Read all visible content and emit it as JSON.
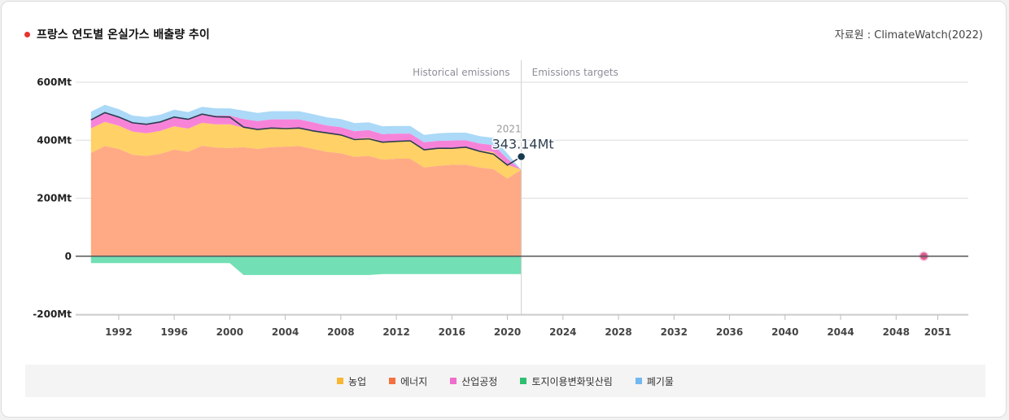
{
  "header": {
    "title": "프랑스 연도별 온실가스 배출량 추이",
    "source": "자료원 : ClimateWatch(2022)"
  },
  "chart_data": {
    "type": "area",
    "y_axis": {
      "ticks": [
        600,
        400,
        200,
        0,
        -200
      ],
      "tick_labels": [
        "600Mt",
        "400Mt",
        "200Mt",
        "0",
        "-200Mt"
      ],
      "ylim": [
        -200,
        600
      ]
    },
    "x_axis": {
      "xlim": [
        1988.9,
        2053.2
      ],
      "ticks": [
        1992,
        1996,
        2000,
        2004,
        2008,
        2012,
        2016,
        2020,
        2024,
        2028,
        2032,
        2036,
        2040,
        2044,
        2048,
        2051
      ],
      "tick_labels": [
        "1992",
        "1996",
        "2000",
        "2004",
        "2008",
        "2012",
        "2016",
        "2020",
        "2024",
        "2028",
        "2032",
        "2036",
        "2040",
        "2044",
        "2048",
        "2051"
      ]
    },
    "region_labels": {
      "left": "Historical emissions",
      "right": "Emissions targets",
      "divider_year": 2021
    },
    "x": [
      1990,
      1991,
      1992,
      1993,
      1994,
      1995,
      1996,
      1997,
      1998,
      1999,
      2000,
      2001,
      2002,
      2003,
      2004,
      2005,
      2006,
      2007,
      2008,
      2009,
      2010,
      2011,
      2012,
      2013,
      2014,
      2015,
      2016,
      2017,
      2018,
      2019,
      2020,
      2021
    ],
    "series": [
      {
        "name": "에너지",
        "color": "#ffaa85",
        "values": [
          356,
          380,
          370,
          350,
          346,
          353,
          368,
          360,
          381,
          375,
          373,
          376,
          370,
          376,
          378,
          380,
          370,
          360,
          355,
          343,
          346,
          333,
          336,
          336,
          306,
          312,
          315,
          316,
          306,
          300,
          268,
          298
        ]
      },
      {
        "name": "농업",
        "color": "#ffd166",
        "values": [
          85,
          83,
          80,
          80,
          78,
          79,
          80,
          80,
          79,
          80,
          82,
          67,
          66,
          66,
          65,
          63,
          63,
          63,
          62,
          62,
          63,
          62,
          62,
          62,
          62,
          61,
          60,
          60,
          59,
          59,
          48,
          0
        ]
      },
      {
        "name": "산업공정",
        "color": "#f783d9",
        "values": [
          32,
          32,
          31,
          31,
          31,
          31,
          31,
          31,
          30,
          30,
          30,
          30,
          30,
          30,
          29,
          29,
          29,
          28,
          28,
          26,
          26,
          26,
          25,
          25,
          25,
          25,
          24,
          24,
          24,
          24,
          20,
          0
        ]
      },
      {
        "name": "폐기물",
        "color": "#abd9f7",
        "values": [
          25,
          27,
          26,
          24,
          25,
          25,
          26,
          26,
          25,
          25,
          25,
          29,
          28,
          28,
          28,
          28,
          28,
          28,
          28,
          28,
          27,
          27,
          26,
          26,
          25,
          26,
          27,
          26,
          25,
          25,
          18,
          0
        ]
      },
      {
        "name": "토지이용변화및산림",
        "color": "#72dfb5",
        "values": [
          -24,
          -24,
          -24,
          -24,
          -24,
          -24,
          -24,
          -24,
          -24,
          -24,
          -24,
          -65,
          -65,
          -65,
          -65,
          -65,
          -65,
          -65,
          -65,
          -65,
          -65,
          -62,
          -62,
          -62,
          -62,
          -62,
          -62,
          -62,
          -62,
          -62,
          -62,
          -62
        ]
      }
    ],
    "net_line": {
      "color": "#2d3e50",
      "values": [
        470,
        495,
        480,
        460,
        455,
        463,
        480,
        472,
        490,
        481,
        480,
        445,
        437,
        442,
        440,
        442,
        432,
        425,
        418,
        402,
        405,
        393,
        396,
        398,
        367,
        372,
        372,
        376,
        362,
        352,
        314,
        343.14
      ]
    },
    "highlight": {
      "year_label": "2021",
      "value_label": "343.14Mt"
    },
    "target_point": {
      "x": 2050,
      "y": 0,
      "color": "#d9578f"
    },
    "legend": [
      {
        "label": "농업",
        "color": "#f7b733"
      },
      {
        "label": "에너지",
        "color": "#f4703f"
      },
      {
        "label": "산업공정",
        "color": "#ef6ecc"
      },
      {
        "label": "토지이용변화및산림",
        "color": "#2fbf71"
      },
      {
        "label": "폐기물",
        "color": "#72b8f0"
      }
    ]
  }
}
